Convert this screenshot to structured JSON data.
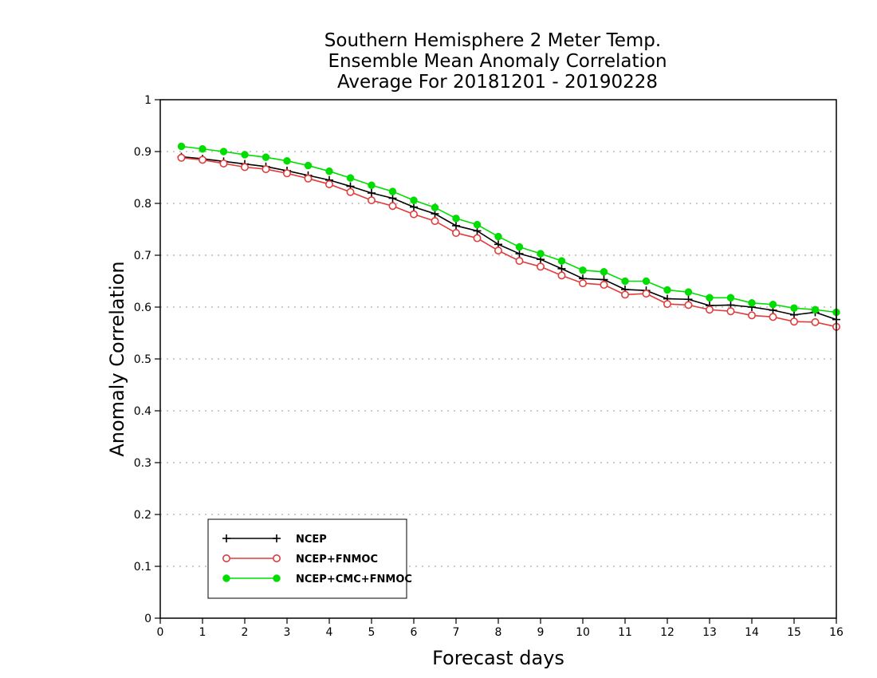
{
  "chart_data": {
    "type": "line",
    "title": [
      "Southern Hemisphere 2 Meter Temp.",
      "Ensemble Mean Anomaly Correlation",
      "Average For 20181201 - 20190228"
    ],
    "xlabel": "Forecast days",
    "ylabel": "Anomaly Correlation",
    "xlim": [
      0,
      16
    ],
    "ylim": [
      0,
      1
    ],
    "x_ticks": [
      0,
      1,
      2,
      3,
      4,
      5,
      6,
      7,
      8,
      9,
      10,
      11,
      12,
      13,
      14,
      15,
      16
    ],
    "y_ticks": [
      0,
      0.1,
      0.2,
      0.3,
      0.4,
      0.5,
      0.6,
      0.7,
      0.8,
      0.9,
      1
    ],
    "y_tick_labels": [
      "0",
      "0.1",
      "0.2",
      "0.3",
      "0.4",
      "0.5",
      "0.6",
      "0.7",
      "0.8",
      "0.9",
      "1"
    ],
    "grid": true,
    "legend_position": "bottom-left",
    "x": [
      0.5,
      1.0,
      1.5,
      2.0,
      2.5,
      3.0,
      3.5,
      4.0,
      4.5,
      5.0,
      5.5,
      6.0,
      6.5,
      7.0,
      7.5,
      8.0,
      8.5,
      9.0,
      9.5,
      10.0,
      10.5,
      11.0,
      11.5,
      12.0,
      12.5,
      13.0,
      13.5,
      14.0,
      14.5,
      15.0,
      15.5,
      16.0
    ],
    "series": [
      {
        "name": "NCEP",
        "color": "#000000",
        "marker": "plus",
        "values": [
          0.89,
          0.886,
          0.881,
          0.876,
          0.871,
          0.863,
          0.854,
          0.845,
          0.833,
          0.82,
          0.81,
          0.793,
          0.78,
          0.757,
          0.747,
          0.721,
          0.703,
          0.692,
          0.674,
          0.655,
          0.653,
          0.634,
          0.632,
          0.616,
          0.615,
          0.603,
          0.604,
          0.6,
          0.594,
          0.585,
          0.59,
          0.576
        ]
      },
      {
        "name": "NCEP+FNMOC",
        "color": "#e03c3c",
        "marker": "open-circle",
        "values": [
          0.888,
          0.884,
          0.877,
          0.87,
          0.866,
          0.858,
          0.848,
          0.837,
          0.822,
          0.806,
          0.795,
          0.779,
          0.766,
          0.743,
          0.733,
          0.709,
          0.689,
          0.678,
          0.661,
          0.646,
          0.643,
          0.624,
          0.626,
          0.606,
          0.604,
          0.595,
          0.592,
          0.584,
          0.581,
          0.572,
          0.571,
          0.562
        ]
      },
      {
        "name": "NCEP+CMC+FNMOC",
        "color": "#00dd00",
        "marker": "filled-circle",
        "values": [
          0.91,
          0.905,
          0.9,
          0.894,
          0.889,
          0.882,
          0.873,
          0.862,
          0.849,
          0.835,
          0.823,
          0.806,
          0.792,
          0.771,
          0.759,
          0.736,
          0.716,
          0.703,
          0.689,
          0.671,
          0.668,
          0.65,
          0.65,
          0.633,
          0.629,
          0.618,
          0.618,
          0.608,
          0.605,
          0.598,
          0.595,
          0.59
        ]
      }
    ]
  }
}
